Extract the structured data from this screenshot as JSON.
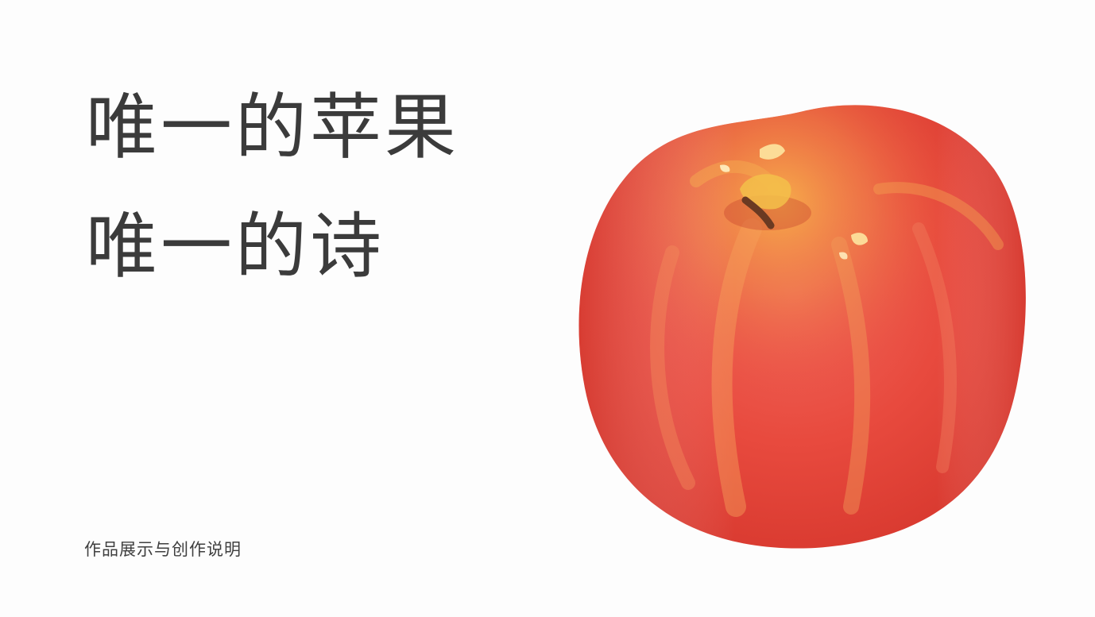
{
  "slide": {
    "title_lines": [
      "唯一的苹果",
      "唯一的诗"
    ],
    "subtitle": "作品展示与创作说明",
    "colors": {
      "background": "#fdfdfd",
      "text": "#3b3b3b",
      "apple_red": "#e8473b",
      "apple_highlight": "#f6b04a",
      "stem": "#6b3a22"
    },
    "illustration": "red-apple-watercolor"
  }
}
